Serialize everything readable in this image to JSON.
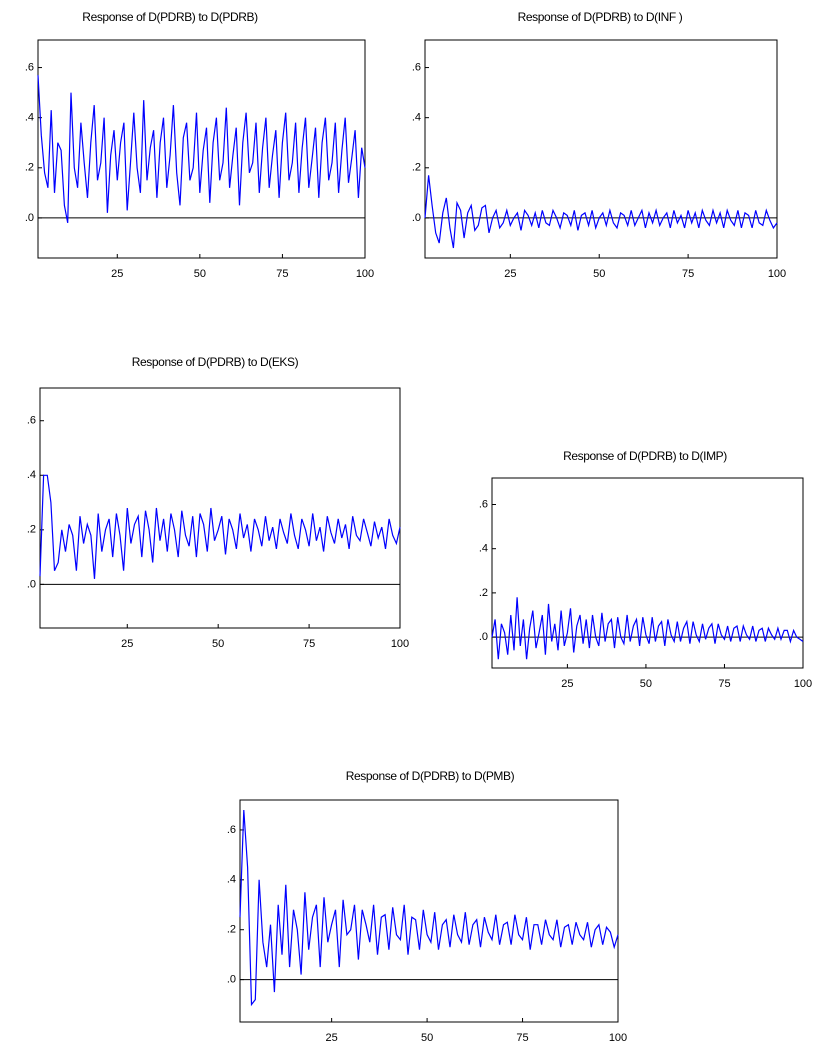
{
  "chart_data": [
    {
      "type": "line",
      "title": "Response of D(PDRB) to D(PDRB)",
      "color": "#0000ff",
      "x": [
        1,
        2,
        3,
        4,
        5,
        6,
        7,
        8,
        9,
        10,
        11,
        12,
        13,
        14,
        15,
        16,
        17,
        18,
        19,
        20,
        21,
        22,
        23,
        24,
        25,
        26,
        27,
        28,
        29,
        30,
        31,
        32,
        33,
        34,
        35,
        36,
        37,
        38,
        39,
        40,
        41,
        42,
        43,
        44,
        45,
        46,
        47,
        48,
        49,
        50,
        51,
        52,
        53,
        54,
        55,
        56,
        57,
        58,
        59,
        60,
        61,
        62,
        63,
        64,
        65,
        66,
        67,
        68,
        69,
        70,
        71,
        72,
        73,
        74,
        75,
        76,
        77,
        78,
        79,
        80,
        81,
        82,
        83,
        84,
        85,
        86,
        87,
        88,
        89,
        90,
        91,
        92,
        93,
        94,
        95,
        96,
        97,
        98,
        99,
        100
      ],
      "values": [
        0.57,
        0.33,
        0.18,
        0.12,
        0.43,
        0.1,
        0.3,
        0.27,
        0.05,
        -0.02,
        0.5,
        0.2,
        0.12,
        0.38,
        0.22,
        0.08,
        0.3,
        0.45,
        0.15,
        0.22,
        0.4,
        0.02,
        0.25,
        0.35,
        0.15,
        0.3,
        0.38,
        0.03,
        0.22,
        0.42,
        0.2,
        0.1,
        0.47,
        0.15,
        0.28,
        0.35,
        0.08,
        0.3,
        0.4,
        0.12,
        0.25,
        0.45,
        0.18,
        0.05,
        0.32,
        0.38,
        0.15,
        0.2,
        0.42,
        0.1,
        0.27,
        0.36,
        0.06,
        0.3,
        0.4,
        0.15,
        0.22,
        0.44,
        0.12,
        0.25,
        0.36,
        0.05,
        0.3,
        0.42,
        0.18,
        0.22,
        0.38,
        0.1,
        0.28,
        0.4,
        0.12,
        0.25,
        0.35,
        0.08,
        0.3,
        0.42,
        0.15,
        0.22,
        0.38,
        0.1,
        0.28,
        0.4,
        0.12,
        0.24,
        0.36,
        0.08,
        0.3,
        0.4,
        0.15,
        0.22,
        0.38,
        0.1,
        0.27,
        0.4,
        0.14,
        0.24,
        0.35,
        0.08,
        0.28,
        0.2
      ],
      "xlim": [
        1,
        100
      ],
      "xticks": [
        25,
        50,
        75,
        100
      ],
      "ylim": [
        -0.16,
        0.71
      ],
      "yticks": [
        {
          "value": 0,
          "label": ".0"
        },
        {
          "value": 0.2,
          "label": ".2"
        },
        {
          "value": 0.4,
          "label": ".4"
        },
        {
          "value": 0.6,
          "label": ".6"
        }
      ]
    },
    {
      "type": "line",
      "title": "Response of D(PDRB) to D(INF )",
      "color": "#0000ff",
      "x": [
        1,
        2,
        3,
        4,
        5,
        6,
        7,
        8,
        9,
        10,
        11,
        12,
        13,
        14,
        15,
        16,
        17,
        18,
        19,
        20,
        21,
        22,
        23,
        24,
        25,
        26,
        27,
        28,
        29,
        30,
        31,
        32,
        33,
        34,
        35,
        36,
        37,
        38,
        39,
        40,
        41,
        42,
        43,
        44,
        45,
        46,
        47,
        48,
        49,
        50,
        51,
        52,
        53,
        54,
        55,
        56,
        57,
        58,
        59,
        60,
        61,
        62,
        63,
        64,
        65,
        66,
        67,
        68,
        69,
        70,
        71,
        72,
        73,
        74,
        75,
        76,
        77,
        78,
        79,
        80,
        81,
        82,
        83,
        84,
        85,
        86,
        87,
        88,
        89,
        90,
        91,
        92,
        93,
        94,
        95,
        96,
        97,
        98,
        99,
        100
      ],
      "values": [
        0.0,
        0.17,
        0.05,
        -0.06,
        -0.1,
        0.02,
        0.08,
        -0.04,
        -0.12,
        0.06,
        0.03,
        -0.08,
        0.02,
        0.05,
        -0.05,
        -0.03,
        0.04,
        0.05,
        -0.06,
        0.0,
        0.03,
        -0.04,
        -0.02,
        0.03,
        -0.03,
        0.0,
        0.02,
        -0.05,
        0.03,
        0.01,
        -0.03,
        0.02,
        -0.04,
        0.03,
        -0.02,
        -0.03,
        0.03,
        0.0,
        -0.04,
        0.02,
        0.01,
        -0.03,
        0.03,
        -0.05,
        0.01,
        0.02,
        -0.03,
        0.03,
        -0.04,
        0.0,
        0.02,
        -0.03,
        0.03,
        -0.02,
        -0.04,
        0.02,
        0.01,
        -0.03,
        0.03,
        -0.03,
        0.0,
        0.03,
        -0.04,
        0.02,
        -0.02,
        0.03,
        -0.03,
        0.0,
        0.02,
        -0.04,
        0.03,
        -0.02,
        0.01,
        -0.04,
        0.03,
        -0.02,
        0.02,
        -0.04,
        0.03,
        -0.01,
        -0.03,
        0.03,
        -0.02,
        0.02,
        -0.04,
        0.03,
        -0.01,
        -0.03,
        0.03,
        -0.04,
        0.02,
        0.01,
        -0.04,
        0.03,
        -0.02,
        -0.03,
        0.03,
        -0.01,
        -0.04,
        -0.02
      ],
      "xlim": [
        1,
        100
      ],
      "xticks": [
        25,
        50,
        75,
        100
      ],
      "ylim": [
        -0.16,
        0.71
      ],
      "yticks": [
        {
          "value": 0,
          "label": ".0"
        },
        {
          "value": 0.2,
          "label": ".2"
        },
        {
          "value": 0.4,
          "label": ".4"
        },
        {
          "value": 0.6,
          "label": ".6"
        }
      ]
    },
    {
      "type": "line",
      "title": "Response of D(PDRB) to D(EKS)",
      "color": "#0000ff",
      "x": [
        1,
        2,
        3,
        4,
        5,
        6,
        7,
        8,
        9,
        10,
        11,
        12,
        13,
        14,
        15,
        16,
        17,
        18,
        19,
        20,
        21,
        22,
        23,
        24,
        25,
        26,
        27,
        28,
        29,
        30,
        31,
        32,
        33,
        34,
        35,
        36,
        37,
        38,
        39,
        40,
        41,
        42,
        43,
        44,
        45,
        46,
        47,
        48,
        49,
        50,
        51,
        52,
        53,
        54,
        55,
        56,
        57,
        58,
        59,
        60,
        61,
        62,
        63,
        64,
        65,
        66,
        67,
        68,
        69,
        70,
        71,
        72,
        73,
        74,
        75,
        76,
        77,
        78,
        79,
        80,
        81,
        82,
        83,
        84,
        85,
        86,
        87,
        88,
        89,
        90,
        91,
        92,
        93,
        94,
        95,
        96,
        97,
        98,
        99,
        100
      ],
      "values": [
        0.03,
        0.4,
        0.4,
        0.3,
        0.05,
        0.08,
        0.2,
        0.12,
        0.22,
        0.18,
        0.05,
        0.25,
        0.15,
        0.22,
        0.18,
        0.02,
        0.26,
        0.12,
        0.2,
        0.24,
        0.1,
        0.26,
        0.18,
        0.05,
        0.28,
        0.15,
        0.22,
        0.25,
        0.1,
        0.27,
        0.2,
        0.08,
        0.28,
        0.16,
        0.24,
        0.12,
        0.26,
        0.2,
        0.1,
        0.27,
        0.18,
        0.14,
        0.25,
        0.1,
        0.26,
        0.22,
        0.12,
        0.28,
        0.16,
        0.2,
        0.25,
        0.11,
        0.24,
        0.2,
        0.13,
        0.26,
        0.17,
        0.22,
        0.12,
        0.24,
        0.2,
        0.14,
        0.25,
        0.16,
        0.21,
        0.13,
        0.24,
        0.19,
        0.15,
        0.26,
        0.18,
        0.13,
        0.24,
        0.2,
        0.14,
        0.26,
        0.16,
        0.21,
        0.12,
        0.25,
        0.19,
        0.15,
        0.24,
        0.17,
        0.22,
        0.13,
        0.25,
        0.18,
        0.16,
        0.24,
        0.19,
        0.14,
        0.23,
        0.17,
        0.21,
        0.13,
        0.24,
        0.18,
        0.15,
        0.21
      ],
      "xlim": [
        1,
        100
      ],
      "xticks": [
        25,
        50,
        75,
        100
      ],
      "ylim": [
        -0.16,
        0.72
      ],
      "yticks": [
        {
          "value": 0,
          "label": ".0"
        },
        {
          "value": 0.2,
          "label": ".2"
        },
        {
          "value": 0.4,
          "label": ".4"
        },
        {
          "value": 0.6,
          "label": ".6"
        }
      ]
    },
    {
      "type": "line",
      "title": "Response of D(PDRB) to D(IMP)",
      "color": "#0000ff",
      "x": [
        1,
        2,
        3,
        4,
        5,
        6,
        7,
        8,
        9,
        10,
        11,
        12,
        13,
        14,
        15,
        16,
        17,
        18,
        19,
        20,
        21,
        22,
        23,
        24,
        25,
        26,
        27,
        28,
        29,
        30,
        31,
        32,
        33,
        34,
        35,
        36,
        37,
        38,
        39,
        40,
        41,
        42,
        43,
        44,
        45,
        46,
        47,
        48,
        49,
        50,
        51,
        52,
        53,
        54,
        55,
        56,
        57,
        58,
        59,
        60,
        61,
        62,
        63,
        64,
        65,
        66,
        67,
        68,
        69,
        70,
        71,
        72,
        73,
        74,
        75,
        76,
        77,
        78,
        79,
        80,
        81,
        82,
        83,
        84,
        85,
        86,
        87,
        88,
        89,
        90,
        91,
        92,
        93,
        94,
        95,
        96,
        97,
        98,
        99,
        100
      ],
      "values": [
        0.0,
        0.08,
        -0.1,
        0.06,
        0.02,
        -0.08,
        0.1,
        -0.06,
        0.18,
        -0.04,
        0.08,
        -0.1,
        0.04,
        0.12,
        -0.05,
        0.02,
        0.1,
        -0.08,
        0.15,
        -0.02,
        0.06,
        -0.06,
        0.12,
        -0.04,
        0.02,
        0.13,
        -0.07,
        0.05,
        0.1,
        -0.03,
        0.08,
        -0.05,
        0.1,
        0.0,
        -0.04,
        0.11,
        -0.02,
        0.06,
        0.08,
        -0.05,
        0.09,
        0.0,
        -0.03,
        0.1,
        -0.02,
        0.05,
        0.08,
        -0.04,
        0.09,
        0.01,
        -0.03,
        0.09,
        -0.02,
        0.05,
        0.07,
        -0.04,
        0.08,
        0.01,
        -0.02,
        0.07,
        -0.02,
        0.04,
        0.07,
        -0.03,
        0.07,
        0.01,
        -0.02,
        0.06,
        -0.01,
        0.04,
        0.06,
        -0.03,
        0.06,
        0.01,
        -0.01,
        0.05,
        -0.02,
        0.04,
        0.05,
        -0.02,
        0.05,
        0.01,
        -0.01,
        0.05,
        -0.02,
        0.03,
        0.04,
        -0.02,
        0.04,
        0.01,
        -0.01,
        0.04,
        -0.01,
        0.03,
        0.03,
        -0.02,
        0.03,
        0.0,
        -0.01,
        -0.02
      ],
      "xlim": [
        1,
        100
      ],
      "xticks": [
        25,
        50,
        75,
        100
      ],
      "ylim": [
        -0.14,
        0.72
      ],
      "yticks": [
        {
          "value": 0,
          "label": ".0"
        },
        {
          "value": 0.2,
          "label": ".2"
        },
        {
          "value": 0.4,
          "label": ".4"
        },
        {
          "value": 0.6,
          "label": ".6"
        }
      ]
    },
    {
      "type": "line",
      "title": "Response of D(PDRB) to D(PMB)",
      "color": "#0000ff",
      "x": [
        1,
        2,
        3,
        4,
        5,
        6,
        7,
        8,
        9,
        10,
        11,
        12,
        13,
        14,
        15,
        16,
        17,
        18,
        19,
        20,
        21,
        22,
        23,
        24,
        25,
        26,
        27,
        28,
        29,
        30,
        31,
        32,
        33,
        34,
        35,
        36,
        37,
        38,
        39,
        40,
        41,
        42,
        43,
        44,
        45,
        46,
        47,
        48,
        49,
        50,
        51,
        52,
        53,
        54,
        55,
        56,
        57,
        58,
        59,
        60,
        61,
        62,
        63,
        64,
        65,
        66,
        67,
        68,
        69,
        70,
        71,
        72,
        73,
        74,
        75,
        76,
        77,
        78,
        79,
        80,
        81,
        82,
        83,
        84,
        85,
        86,
        87,
        88,
        89,
        90,
        91,
        92,
        93,
        94,
        95,
        96,
        97,
        98,
        99,
        100
      ],
      "values": [
        0.25,
        0.68,
        0.45,
        -0.1,
        -0.08,
        0.4,
        0.15,
        0.05,
        0.22,
        -0.05,
        0.3,
        0.1,
        0.38,
        0.05,
        0.28,
        0.2,
        0.02,
        0.35,
        0.12,
        0.25,
        0.3,
        0.05,
        0.33,
        0.15,
        0.22,
        0.28,
        0.05,
        0.32,
        0.18,
        0.2,
        0.3,
        0.08,
        0.28,
        0.22,
        0.15,
        0.3,
        0.1,
        0.25,
        0.26,
        0.12,
        0.29,
        0.18,
        0.16,
        0.3,
        0.1,
        0.25,
        0.24,
        0.12,
        0.28,
        0.18,
        0.15,
        0.27,
        0.12,
        0.22,
        0.24,
        0.13,
        0.26,
        0.18,
        0.15,
        0.27,
        0.14,
        0.22,
        0.24,
        0.13,
        0.25,
        0.19,
        0.16,
        0.26,
        0.14,
        0.22,
        0.23,
        0.14,
        0.26,
        0.18,
        0.16,
        0.25,
        0.12,
        0.22,
        0.22,
        0.14,
        0.24,
        0.18,
        0.16,
        0.24,
        0.13,
        0.21,
        0.22,
        0.14,
        0.23,
        0.18,
        0.16,
        0.23,
        0.13,
        0.2,
        0.22,
        0.14,
        0.21,
        0.19,
        0.13,
        0.18
      ],
      "xlim": [
        1,
        100
      ],
      "xticks": [
        25,
        50,
        75,
        100
      ],
      "ylim": [
        -0.17,
        0.72
      ],
      "yticks": [
        {
          "value": 0,
          "label": ".0"
        },
        {
          "value": 0.2,
          "label": ".2"
        },
        {
          "value": 0.4,
          "label": ".4"
        },
        {
          "value": 0.6,
          "label": ".6"
        }
      ]
    }
  ]
}
